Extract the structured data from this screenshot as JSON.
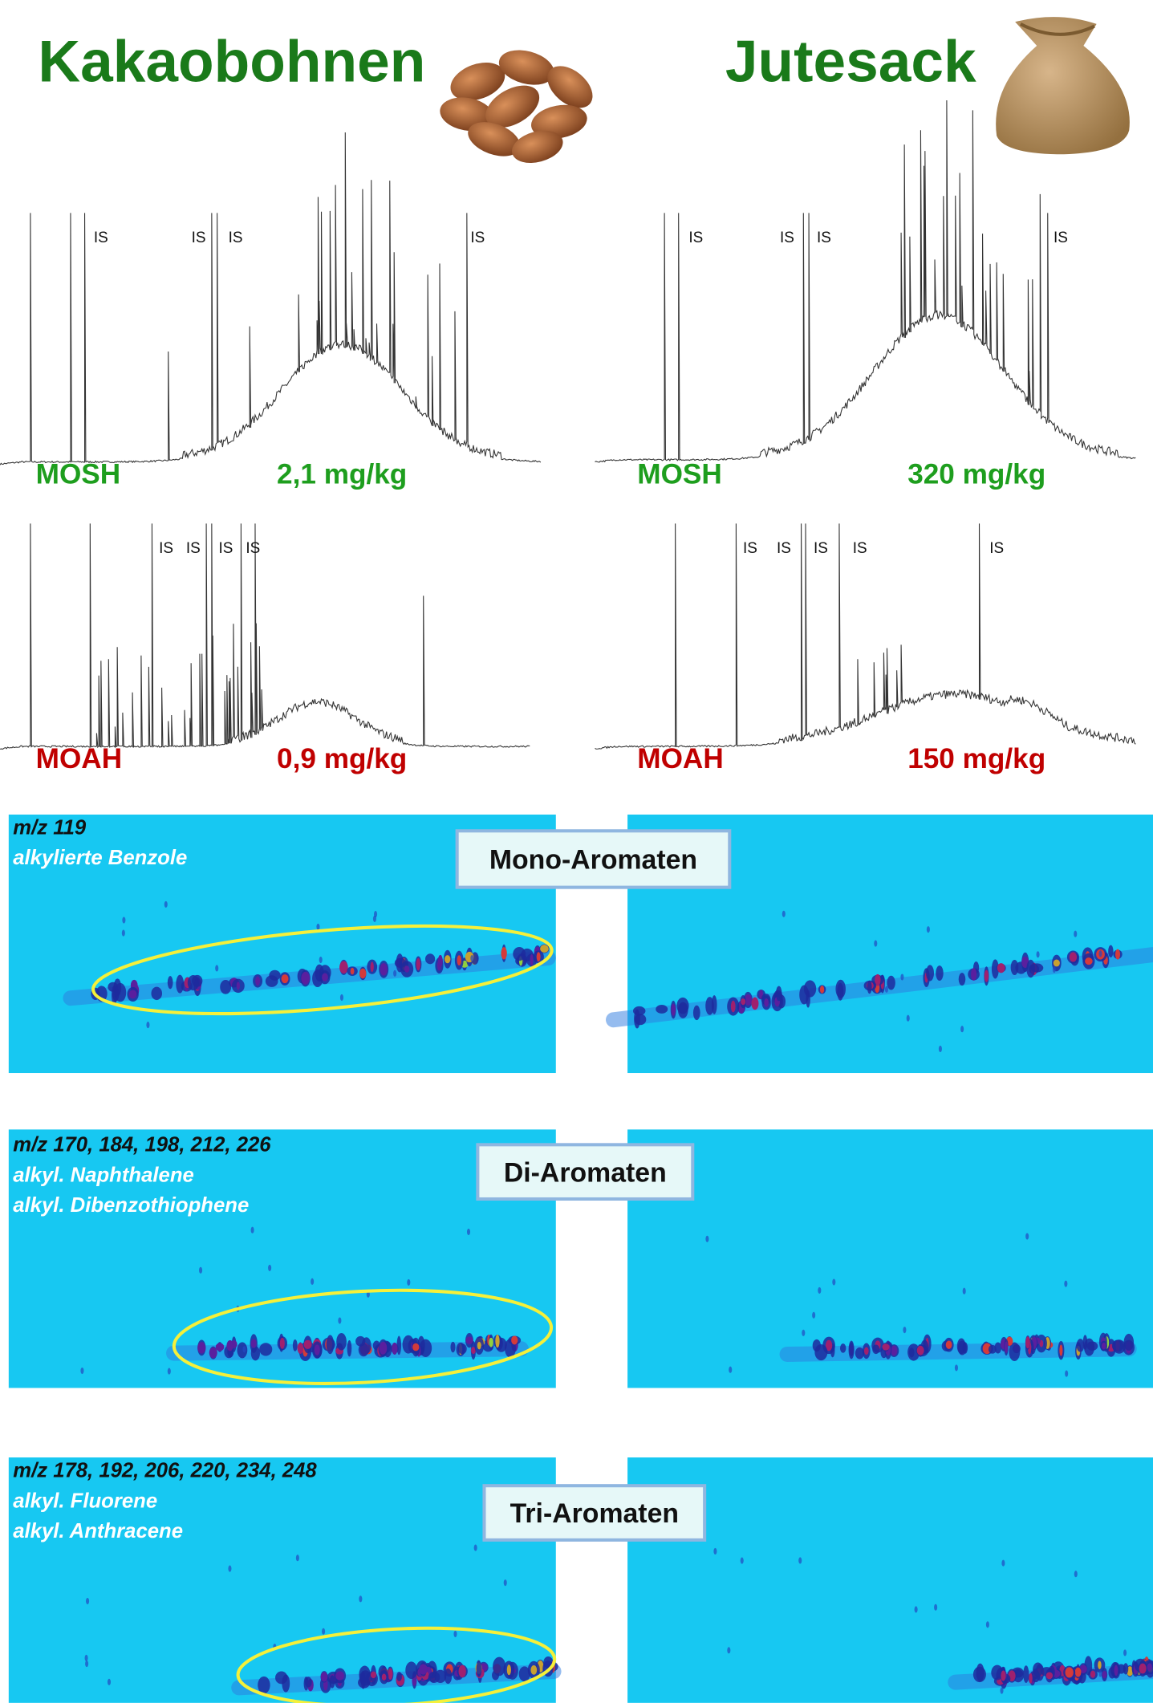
{
  "header": {
    "left_title": "Kakaobohnen",
    "right_title": "Jutesack"
  },
  "chromatograms": {
    "left": {
      "mosh": {
        "label": "MOSH",
        "amount": "2,1 mg/kg",
        "is_labels": [
          "IS",
          "IS",
          "IS",
          "IS"
        ]
      },
      "moah": {
        "label": "MOAH",
        "amount": "0,9 mg/kg",
        "is_labels": [
          "IS",
          "IS",
          "IS",
          "IS"
        ]
      }
    },
    "right": {
      "mosh": {
        "label": "MOSH",
        "amount": "320 mg/kg",
        "is_labels": [
          "IS",
          "IS",
          "IS",
          "IS"
        ]
      },
      "moah": {
        "label": "MOAH",
        "amount": "150 mg/kg",
        "is_labels": [
          "IS",
          "IS",
          "IS",
          "IS",
          "IS"
        ]
      }
    }
  },
  "heatmaps": [
    {
      "box": "Mono-Aromaten",
      "mz": "m/z 119",
      "compounds": [
        "alkylierte Benzole"
      ]
    },
    {
      "box": "Di-Aromaten",
      "mz": "m/z 170, 184, 198, 212, 226",
      "compounds": [
        "alkyl. Naphthalene",
        "alkyl. Dibenzothiophene"
      ]
    },
    {
      "box": "Tri-Aromaten",
      "mz": "m/z 178, 192, 206, 220, 234, 248",
      "compounds": [
        "alkyl. Fluorene",
        "alkyl. Anthracene"
      ]
    }
  ]
}
